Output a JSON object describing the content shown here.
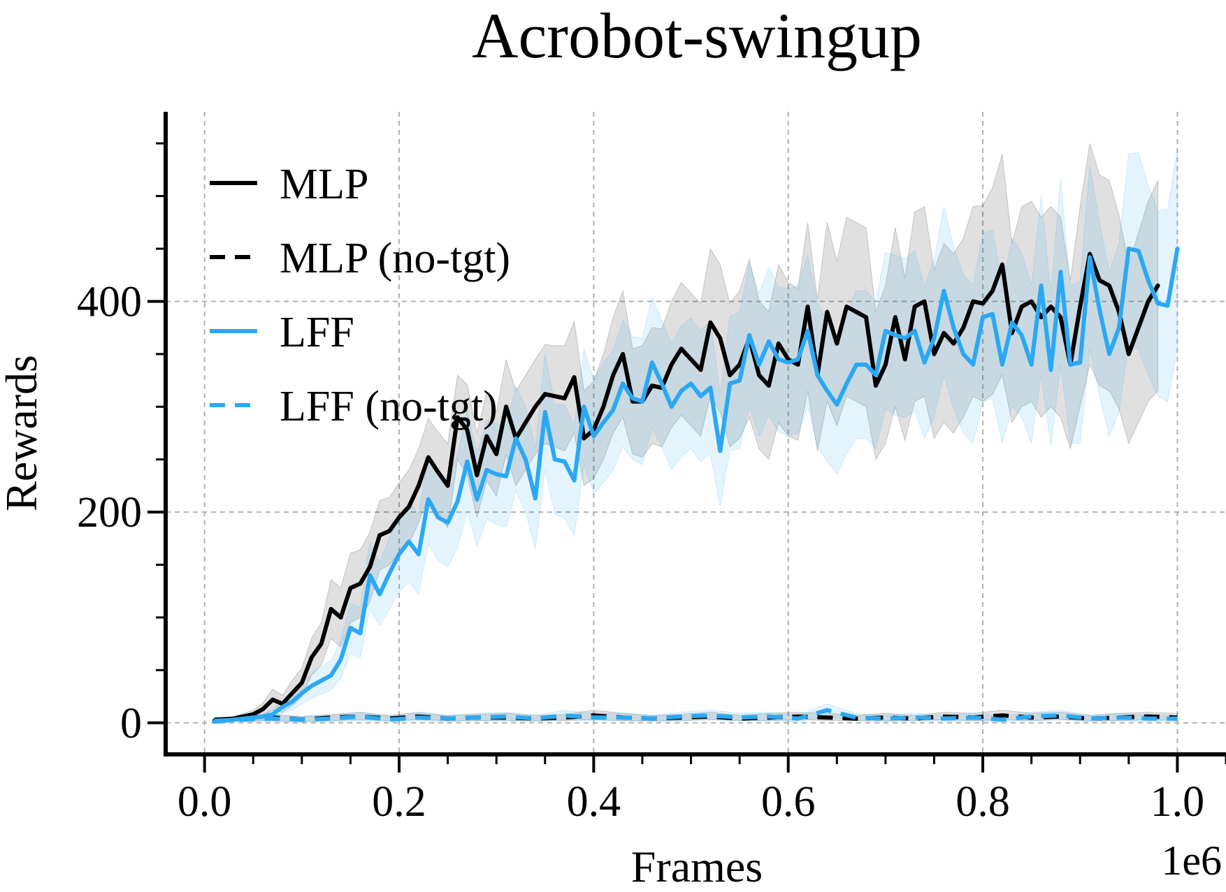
{
  "chart_data": {
    "type": "line",
    "title": "Acrobot-swingup",
    "xlabel": "Frames",
    "ylabel": "Rewards",
    "x_offset_label": "1e6",
    "xlim": [
      -0.04,
      1.05
    ],
    "ylim": [
      -30,
      580
    ],
    "xticks": [
      0.0,
      0.2,
      0.4,
      0.6,
      0.8,
      1.0
    ],
    "xtick_labels": [
      "0.0",
      "0.2",
      "0.4",
      "0.6",
      "0.8",
      "1.0"
    ],
    "yticks": [
      0,
      200,
      400
    ],
    "ytick_labels": [
      "0",
      "200",
      "400"
    ],
    "grid": true,
    "legend_position": "upper-left",
    "colors": {
      "mlp": "#000000",
      "lff": "#2ba8f3"
    },
    "series": [
      {
        "name": "MLP",
        "color": "#000000",
        "dash": "solid",
        "x": [
          0.01,
          0.02,
          0.03,
          0.04,
          0.05,
          0.06,
          0.07,
          0.08,
          0.09,
          0.1,
          0.11,
          0.12,
          0.13,
          0.14,
          0.15,
          0.16,
          0.17,
          0.18,
          0.19,
          0.2,
          0.21,
          0.22,
          0.23,
          0.24,
          0.25,
          0.26,
          0.27,
          0.28,
          0.29,
          0.3,
          0.31,
          0.32,
          0.33,
          0.34,
          0.35,
          0.36,
          0.37,
          0.38,
          0.39,
          0.4,
          0.41,
          0.42,
          0.43,
          0.44,
          0.45,
          0.46,
          0.47,
          0.48,
          0.49,
          0.5,
          0.51,
          0.52,
          0.53,
          0.54,
          0.55,
          0.56,
          0.57,
          0.58,
          0.59,
          0.6,
          0.61,
          0.62,
          0.63,
          0.64,
          0.65,
          0.66,
          0.67,
          0.68,
          0.69,
          0.7,
          0.71,
          0.72,
          0.73,
          0.74,
          0.75,
          0.76,
          0.77,
          0.78,
          0.79,
          0.8,
          0.81,
          0.82,
          0.83,
          0.84,
          0.85,
          0.86,
          0.87,
          0.88,
          0.89,
          0.9,
          0.91,
          0.92,
          0.93,
          0.94,
          0.95,
          0.96,
          0.97,
          0.98
        ],
        "y": [
          2,
          3,
          4,
          6,
          8,
          13,
          22,
          18,
          28,
          38,
          62,
          75,
          108,
          100,
          128,
          132,
          148,
          178,
          182,
          195,
          205,
          225,
          252,
          238,
          225,
          290,
          278,
          235,
          272,
          255,
          300,
          270,
          285,
          300,
          312,
          310,
          308,
          328,
          270,
          278,
          300,
          330,
          350,
          305,
          305,
          320,
          318,
          340,
          355,
          345,
          335,
          380,
          365,
          330,
          340,
          365,
          330,
          320,
          360,
          345,
          340,
          395,
          330,
          390,
          360,
          395,
          390,
          385,
          320,
          340,
          385,
          345,
          395,
          400,
          350,
          370,
          360,
          375,
          400,
          398,
          410,
          435,
          370,
          395,
          400,
          385,
          395,
          385,
          340,
          395,
          445,
          420,
          415,
          390,
          350,
          375,
          400,
          415
        ],
        "band_lower": [
          0,
          1,
          2,
          3,
          4,
          7,
          12,
          10,
          16,
          25,
          45,
          55,
          80,
          72,
          95,
          100,
          115,
          145,
          150,
          162,
          170,
          190,
          215,
          200,
          185,
          250,
          235,
          195,
          230,
          215,
          255,
          225,
          240,
          255,
          265,
          262,
          258,
          275,
          225,
          232,
          250,
          275,
          290,
          255,
          252,
          265,
          262,
          280,
          292,
          282,
          272,
          310,
          295,
          262,
          270,
          290,
          260,
          250,
          285,
          272,
          268,
          315,
          258,
          305,
          282,
          310,
          305,
          300,
          250,
          265,
          300,
          268,
          305,
          310,
          270,
          285,
          275,
          290,
          310,
          305,
          312,
          330,
          285,
          300,
          305,
          290,
          300,
          290,
          260,
          300,
          340,
          320,
          315,
          298,
          265,
          285,
          305,
          315
        ],
        "band_upper": [
          4,
          5,
          6,
          9,
          12,
          19,
          32,
          26,
          40,
          52,
          80,
          95,
          136,
          128,
          161,
          164,
          181,
          211,
          214,
          228,
          240,
          260,
          289,
          276,
          265,
          330,
          321,
          275,
          314,
          295,
          345,
          315,
          330,
          345,
          359,
          358,
          358,
          381,
          315,
          324,
          350,
          385,
          410,
          355,
          358,
          375,
          374,
          400,
          418,
          408,
          398,
          450,
          435,
          398,
          410,
          440,
          400,
          390,
          435,
          418,
          412,
          475,
          402,
          475,
          438,
          480,
          475,
          470,
          390,
          415,
          470,
          422,
          485,
          490,
          430,
          455,
          445,
          460,
          490,
          491,
          508,
          540,
          455,
          490,
          495,
          480,
          490,
          480,
          420,
          490,
          550,
          520,
          515,
          482,
          435,
          465,
          495,
          515
        ]
      },
      {
        "name": "MLP (no-tgt)",
        "color": "#000000",
        "dash": "dashed",
        "x": [
          0.01,
          0.04,
          0.07,
          0.1,
          0.13,
          0.16,
          0.19,
          0.22,
          0.25,
          0.28,
          0.31,
          0.34,
          0.37,
          0.4,
          0.43,
          0.46,
          0.49,
          0.52,
          0.55,
          0.58,
          0.61,
          0.64,
          0.67,
          0.7,
          0.73,
          0.76,
          0.79,
          0.82,
          0.85,
          0.88,
          0.91,
          0.94,
          0.97,
          1.0
        ],
        "y": [
          3,
          4,
          5,
          3,
          5,
          6,
          4,
          6,
          4,
          5,
          5,
          4,
          5,
          7,
          5,
          4,
          5,
          6,
          4,
          5,
          6,
          5,
          4,
          5,
          4,
          6,
          5,
          7,
          5,
          6,
          4,
          5,
          6,
          5
        ],
        "band_lower": [
          1,
          2,
          2,
          1,
          2,
          3,
          2,
          3,
          2,
          2,
          2,
          2,
          2,
          3,
          2,
          2,
          2,
          3,
          2,
          2,
          3,
          2,
          2,
          2,
          2,
          3,
          2,
          3,
          2,
          3,
          2,
          2,
          3,
          2
        ],
        "band_upper": [
          5,
          6,
          8,
          6,
          8,
          10,
          7,
          10,
          7,
          8,
          9,
          7,
          8,
          12,
          9,
          7,
          8,
          10,
          7,
          9,
          10,
          9,
          7,
          9,
          7,
          10,
          9,
          12,
          9,
          10,
          7,
          9,
          10,
          9
        ]
      },
      {
        "name": "LFF",
        "color": "#2ba8f3",
        "dash": "solid",
        "x": [
          0.01,
          0.02,
          0.03,
          0.04,
          0.05,
          0.06,
          0.07,
          0.08,
          0.09,
          0.1,
          0.11,
          0.12,
          0.13,
          0.14,
          0.15,
          0.16,
          0.17,
          0.18,
          0.19,
          0.2,
          0.21,
          0.22,
          0.23,
          0.24,
          0.25,
          0.26,
          0.27,
          0.28,
          0.29,
          0.3,
          0.31,
          0.32,
          0.33,
          0.34,
          0.35,
          0.36,
          0.37,
          0.38,
          0.39,
          0.4,
          0.41,
          0.42,
          0.43,
          0.44,
          0.45,
          0.46,
          0.47,
          0.48,
          0.49,
          0.5,
          0.51,
          0.52,
          0.53,
          0.54,
          0.55,
          0.56,
          0.57,
          0.58,
          0.59,
          0.6,
          0.61,
          0.62,
          0.63,
          0.64,
          0.65,
          0.66,
          0.67,
          0.68,
          0.69,
          0.7,
          0.71,
          0.72,
          0.73,
          0.74,
          0.75,
          0.76,
          0.77,
          0.78,
          0.79,
          0.8,
          0.81,
          0.82,
          0.83,
          0.84,
          0.85,
          0.86,
          0.87,
          0.88,
          0.89,
          0.9,
          0.91,
          0.92,
          0.93,
          0.94,
          0.95,
          0.96,
          0.97,
          0.98,
          0.99,
          1.0
        ],
        "y": [
          1,
          2,
          3,
          4,
          5,
          6,
          8,
          15,
          20,
          28,
          35,
          40,
          45,
          60,
          90,
          85,
          140,
          122,
          142,
          160,
          172,
          160,
          212,
          195,
          190,
          210,
          248,
          212,
          240,
          236,
          234,
          270,
          250,
          213,
          295,
          250,
          248,
          230,
          300,
          272,
          285,
          297,
          322,
          308,
          305,
          342,
          322,
          300,
          315,
          322,
          310,
          318,
          258,
          322,
          325,
          368,
          340,
          362,
          345,
          342,
          345,
          372,
          330,
          315,
          302,
          322,
          340,
          340,
          330,
          372,
          368,
          365,
          372,
          342,
          365,
          410,
          375,
          350,
          340,
          385,
          388,
          340,
          380,
          368,
          340,
          415,
          335,
          428,
          340,
          342,
          442,
          392,
          350,
          375,
          450,
          448,
          420,
          398,
          396,
          450
        ],
        "band_lower": [
          0,
          1,
          2,
          2,
          3,
          3,
          4,
          9,
          12,
          18,
          23,
          27,
          31,
          42,
          66,
          61,
          108,
          92,
          108,
          124,
          134,
          122,
          170,
          154,
          148,
          166,
          200,
          168,
          193,
          188,
          186,
          220,
          200,
          165,
          240,
          198,
          194,
          178,
          245,
          218,
          228,
          240,
          262,
          250,
          245,
          280,
          262,
          240,
          253,
          260,
          248,
          255,
          205,
          258,
          260,
          300,
          272,
          292,
          276,
          272,
          275,
          300,
          262,
          248,
          236,
          255,
          270,
          270,
          260,
          298,
          292,
          290,
          296,
          270,
          290,
          330,
          298,
          275,
          265,
          305,
          308,
          265,
          300,
          290,
          265,
          330,
          262,
          340,
          265,
          265,
          355,
          310,
          272,
          295,
          360,
          355,
          330,
          310,
          305,
          355
        ],
        "band_upper": [
          2,
          3,
          4,
          6,
          7,
          9,
          12,
          21,
          28,
          38,
          47,
          53,
          59,
          78,
          114,
          109,
          172,
          152,
          176,
          196,
          210,
          198,
          254,
          236,
          232,
          254,
          296,
          256,
          287,
          284,
          282,
          320,
          300,
          261,
          350,
          302,
          302,
          282,
          355,
          326,
          342,
          354,
          382,
          366,
          365,
          404,
          382,
          360,
          377,
          384,
          372,
          381,
          311,
          386,
          390,
          436,
          408,
          432,
          414,
          412,
          415,
          444,
          398,
          382,
          368,
          389,
          410,
          410,
          400,
          446,
          444,
          440,
          448,
          414,
          440,
          490,
          452,
          425,
          415,
          465,
          468,
          415,
          460,
          446,
          415,
          500,
          408,
          516,
          415,
          419,
          529,
          474,
          428,
          455,
          540,
          541,
          510,
          486,
          487,
          545
        ]
      },
      {
        "name": "LFF (no-tgt)",
        "color": "#2ba8f3",
        "dash": "dashed",
        "x": [
          0.01,
          0.04,
          0.07,
          0.1,
          0.13,
          0.16,
          0.19,
          0.22,
          0.25,
          0.28,
          0.31,
          0.34,
          0.37,
          0.4,
          0.43,
          0.46,
          0.49,
          0.52,
          0.55,
          0.58,
          0.61,
          0.64,
          0.67,
          0.7,
          0.73,
          0.76,
          0.79,
          0.82,
          0.85,
          0.88,
          0.91,
          0.94,
          0.97,
          1.0
        ],
        "y": [
          2,
          3,
          4,
          3,
          4,
          6,
          3,
          5,
          4,
          5,
          6,
          4,
          7,
          5,
          5,
          4,
          6,
          7,
          5,
          6,
          4,
          12,
          5,
          4,
          5,
          4,
          5,
          3,
          6,
          7,
          4,
          5,
          4,
          4
        ],
        "band_lower": [
          0,
          1,
          1,
          1,
          1,
          2,
          1,
          2,
          1,
          2,
          2,
          1,
          3,
          2,
          2,
          1,
          2,
          3,
          2,
          2,
          1,
          6,
          2,
          1,
          2,
          1,
          2,
          1,
          2,
          3,
          1,
          2,
          1,
          1
        ],
        "band_upper": [
          4,
          6,
          7,
          6,
          7,
          10,
          6,
          9,
          7,
          9,
          10,
          7,
          12,
          9,
          9,
          7,
          10,
          12,
          9,
          10,
          7,
          18,
          9,
          7,
          9,
          7,
          9,
          6,
          10,
          12,
          7,
          9,
          7,
          7
        ]
      }
    ]
  }
}
